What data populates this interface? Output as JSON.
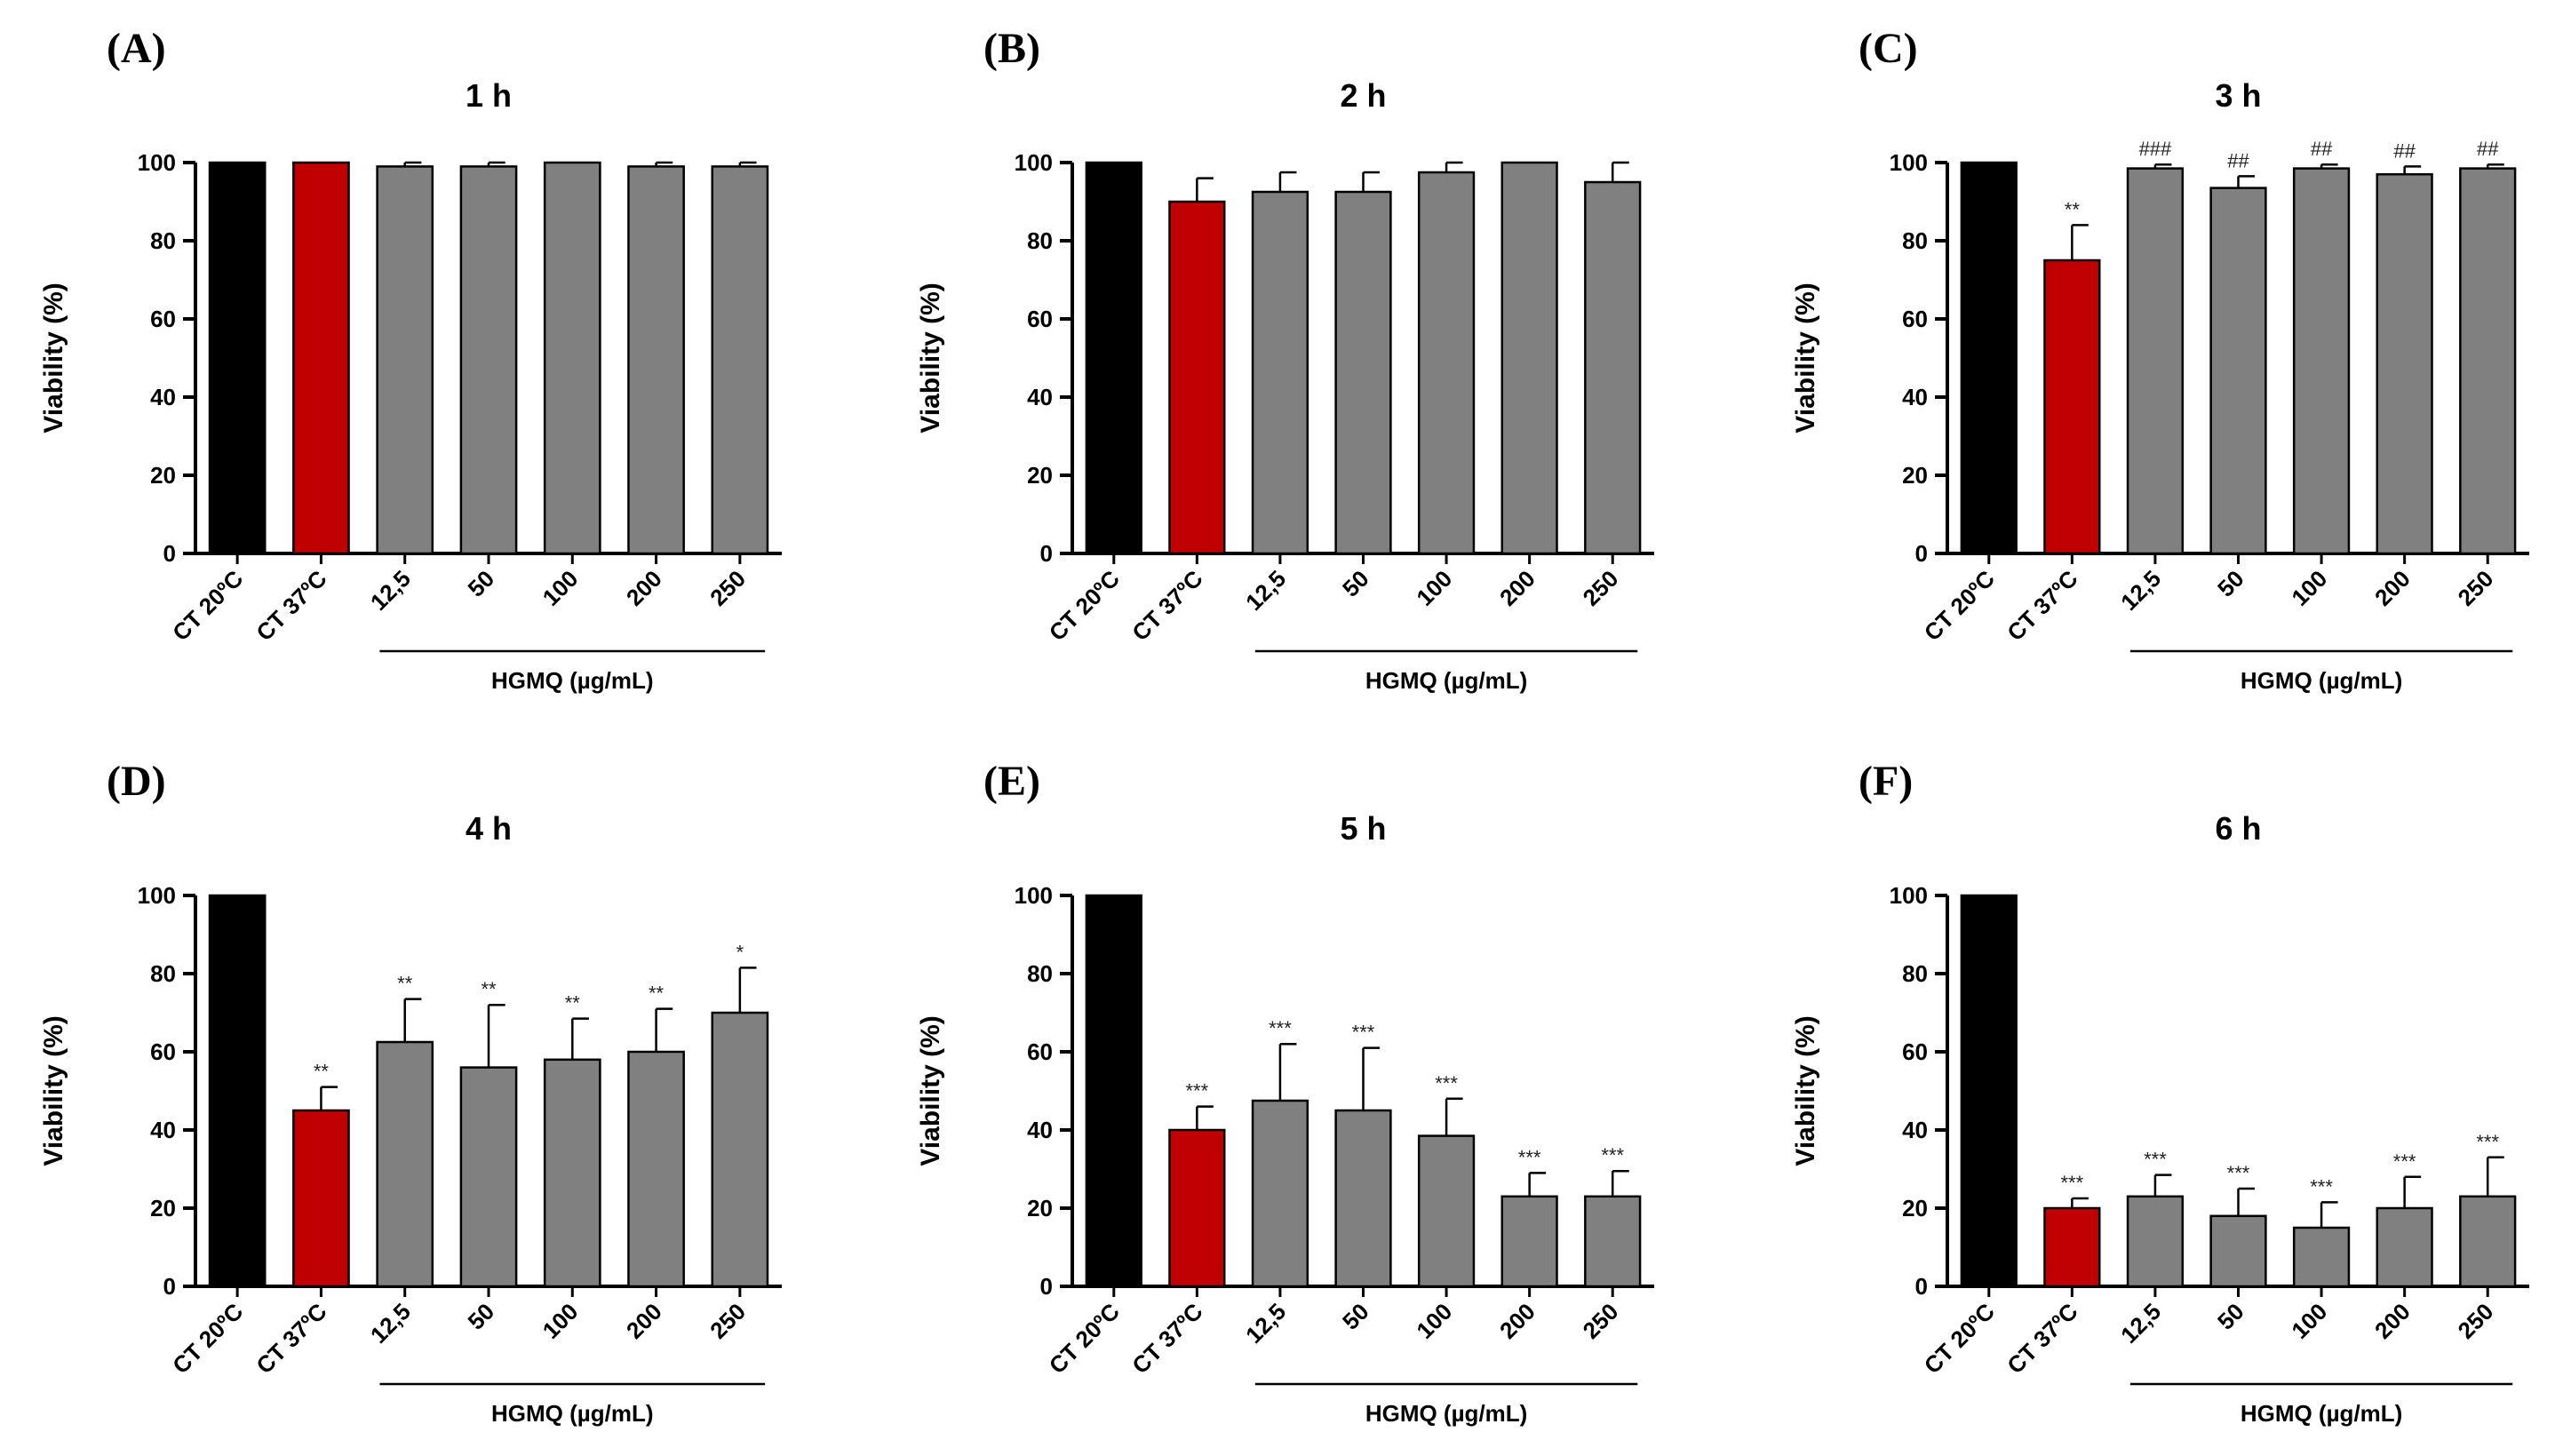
{
  "chart_data": [
    {
      "type": "bar",
      "panel": "(A)",
      "title": "1 h",
      "ylabel": "Viability (%)",
      "xlabel": "HGMQ (µg/mL)",
      "ylim": [
        0,
        100
      ],
      "yticks": [
        0,
        20,
        40,
        60,
        80,
        100
      ],
      "categories": [
        "CT 20ºC",
        "CT 37ºC",
        "12,5",
        "50",
        "100",
        "200",
        "250"
      ],
      "values": [
        100,
        100,
        99,
        99,
        100,
        99,
        99
      ],
      "errors": [
        0,
        0,
        1,
        1,
        0,
        1,
        1
      ],
      "annotations": [
        "",
        "",
        "",
        "",
        "",
        "",
        ""
      ],
      "colors": [
        "#000000",
        "#c00000",
        "#808080",
        "#808080",
        "#808080",
        "#808080",
        "#808080"
      ]
    },
    {
      "type": "bar",
      "panel": "(B)",
      "title": "2 h",
      "ylabel": "Viability (%)",
      "xlabel": "HGMQ (µg/mL)",
      "ylim": [
        0,
        100
      ],
      "yticks": [
        0,
        20,
        40,
        60,
        80,
        100
      ],
      "categories": [
        "CT 20ºC",
        "CT 37ºC",
        "12,5",
        "50",
        "100",
        "200",
        "250"
      ],
      "values": [
        100,
        90,
        92.5,
        92.5,
        97.5,
        100,
        95
      ],
      "errors": [
        0,
        6,
        5,
        5,
        2.5,
        0,
        5
      ],
      "annotations": [
        "",
        "",
        "",
        "",
        "",
        "",
        ""
      ],
      "colors": [
        "#000000",
        "#c00000",
        "#808080",
        "#808080",
        "#808080",
        "#808080",
        "#808080"
      ]
    },
    {
      "type": "bar",
      "panel": "(C)",
      "title": "3 h",
      "ylabel": "Viability (%)",
      "xlabel": "HGMQ (µg/mL)",
      "ylim": [
        0,
        100
      ],
      "yticks": [
        0,
        20,
        40,
        60,
        80,
        100
      ],
      "categories": [
        "CT 20ºC",
        "CT 37ºC",
        "12,5",
        "50",
        "100",
        "200",
        "250"
      ],
      "values": [
        100,
        75,
        98.5,
        93.5,
        98.5,
        97,
        98.5
      ],
      "errors": [
        0,
        9,
        1,
        3,
        1,
        2,
        1
      ],
      "annotations": [
        "",
        "**",
        "###",
        "##",
        "##",
        "##",
        "##"
      ],
      "colors": [
        "#000000",
        "#c00000",
        "#808080",
        "#808080",
        "#808080",
        "#808080",
        "#808080"
      ]
    },
    {
      "type": "bar",
      "panel": "(D)",
      "title": "4 h",
      "ylabel": "Viability (%)",
      "xlabel": "HGMQ (µg/mL)",
      "ylim": [
        0,
        100
      ],
      "yticks": [
        0,
        20,
        40,
        60,
        80,
        100
      ],
      "categories": [
        "CT 20ºC",
        "CT 37ºC",
        "12,5",
        "50",
        "100",
        "200",
        "250"
      ],
      "values": [
        100,
        45,
        62.5,
        56,
        58,
        60,
        70
      ],
      "errors": [
        0,
        6,
        11,
        16,
        10.5,
        11,
        11.5
      ],
      "annotations": [
        "",
        "**",
        "**",
        "**",
        "**",
        "**",
        "*"
      ],
      "colors": [
        "#000000",
        "#c00000",
        "#808080",
        "#808080",
        "#808080",
        "#808080",
        "#808080"
      ]
    },
    {
      "type": "bar",
      "panel": "(E)",
      "title": "5 h",
      "ylabel": "Viability (%)",
      "xlabel": "HGMQ (µg/mL)",
      "ylim": [
        0,
        100
      ],
      "yticks": [
        0,
        20,
        40,
        60,
        80,
        100
      ],
      "categories": [
        "CT 20ºC",
        "CT 37ºC",
        "12,5",
        "50",
        "100",
        "200",
        "250"
      ],
      "values": [
        100,
        40,
        47.5,
        45,
        38.5,
        23,
        23
      ],
      "errors": [
        0,
        6,
        14.5,
        16,
        9.5,
        6,
        6.5
      ],
      "annotations": [
        "",
        "***",
        "***",
        "***",
        "***",
        "***",
        "***"
      ],
      "colors": [
        "#000000",
        "#c00000",
        "#808080",
        "#808080",
        "#808080",
        "#808080",
        "#808080"
      ]
    },
    {
      "type": "bar",
      "panel": "(F)",
      "title": "6 h",
      "ylabel": "Viability (%)",
      "xlabel": "HGMQ (µg/mL)",
      "ylim": [
        0,
        100
      ],
      "yticks": [
        0,
        20,
        40,
        60,
        80,
        100
      ],
      "categories": [
        "CT 20ºC",
        "CT 37ºC",
        "12,5",
        "50",
        "100",
        "200",
        "250"
      ],
      "values": [
        100,
        20,
        23,
        18,
        15,
        20,
        23
      ],
      "errors": [
        0,
        2.5,
        5.5,
        7,
        6.5,
        8,
        10
      ],
      "annotations": [
        "",
        "***",
        "***",
        "***",
        "***",
        "***",
        "***"
      ],
      "colors": [
        "#000000",
        "#c00000",
        "#808080",
        "#808080",
        "#808080",
        "#808080",
        "#808080"
      ]
    }
  ]
}
